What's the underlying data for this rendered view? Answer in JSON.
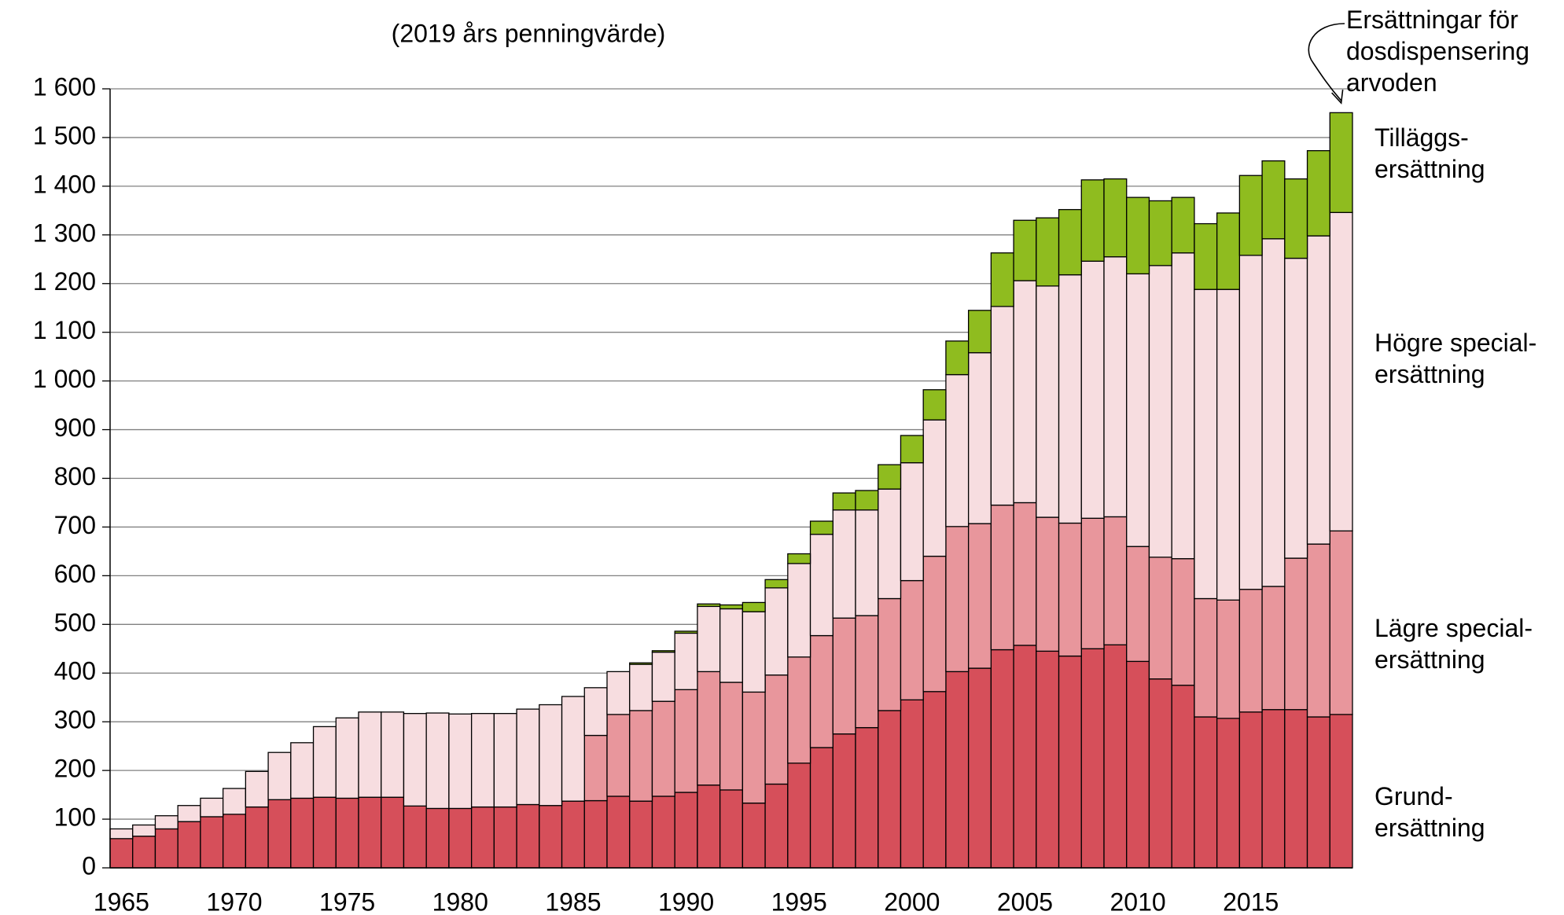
{
  "chart_data": {
    "type": "stacked_bar",
    "subtitle": "(2019 års penningvärde)",
    "annotation": "Ersättningar för\ndosdispensering\narvoden",
    "x": [
      1965,
      1966,
      1967,
      1968,
      1969,
      1970,
      1971,
      1972,
      1973,
      1974,
      1975,
      1976,
      1977,
      1978,
      1979,
      1980,
      1981,
      1982,
      1983,
      1984,
      1985,
      1986,
      1987,
      1988,
      1989,
      1990,
      1991,
      1992,
      1993,
      1994,
      1995,
      1996,
      1997,
      1998,
      1999,
      2000,
      2001,
      2002,
      2003,
      2004,
      2005,
      2006,
      2007,
      2008,
      2009,
      2010,
      2011,
      2012,
      2013,
      2014,
      2015,
      2016,
      2017,
      2018,
      2019
    ],
    "xlim": [
      1964.5,
      2019.5
    ],
    "xticks": [
      1965,
      1970,
      1975,
      1980,
      1985,
      1990,
      1995,
      2000,
      2005,
      2010,
      2015
    ],
    "ylim": [
      0,
      1600
    ],
    "yticks": [
      0,
      100,
      200,
      300,
      400,
      500,
      600,
      700,
      800,
      900,
      {
        "value": 1000,
        "label": "1 000"
      },
      {
        "value": 1100,
        "label": "1 100"
      },
      {
        "value": 1200,
        "label": "1 200"
      },
      {
        "value": 1300,
        "label": "1 300"
      },
      {
        "value": 1400,
        "label": "1 400"
      },
      {
        "value": 1500,
        "label": "1 500"
      },
      {
        "value": 1600,
        "label": "1 600"
      }
    ],
    "grid": true,
    "series": [
      {
        "name": "Grund-\nersättning",
        "color": "#d64f5a",
        "values": [
          60,
          65,
          80,
          95,
          105,
          110,
          125,
          140,
          143,
          145,
          143,
          145,
          145,
          127,
          122,
          122,
          125,
          125,
          130,
          128,
          137,
          138,
          147,
          137,
          147,
          155,
          170,
          160,
          133,
          172,
          215,
          247,
          275,
          288,
          323,
          345,
          362,
          403,
          410,
          448,
          457,
          445,
          435,
          450,
          458,
          424,
          388,
          375,
          310,
          307,
          320,
          325,
          325,
          310,
          315
        ]
      },
      {
        "name": "Lägre special-\nersättning",
        "color": "#e8969c",
        "values": [
          0,
          0,
          0,
          0,
          0,
          0,
          0,
          0,
          0,
          0,
          0,
          0,
          0,
          0,
          0,
          0,
          0,
          0,
          0,
          0,
          0,
          134,
          168,
          186,
          195,
          211,
          233,
          221,
          228,
          224,
          218,
          230,
          238,
          230,
          230,
          245,
          278,
          298,
          297,
          297,
          293,
          275,
          273,
          268,
          263,
          236,
          250,
          260,
          243,
          243,
          252,
          253,
          311,
          355,
          377
        ]
      },
      {
        "name": "Högre special-\nersättning",
        "color": "#f7dde0",
        "values": [
          20,
          23,
          27,
          33,
          38,
          53,
          73,
          97,
          114,
          145,
          165,
          175,
          175,
          190,
          196,
          194,
          192,
          192,
          196,
          207,
          215,
          98,
          88,
          95,
          101,
          116,
          134,
          151,
          165,
          179,
          192,
          208,
          222,
          217,
          225,
          242,
          280,
          312,
          351,
          408,
          456,
          475,
          510,
          528,
          534,
          560,
          599,
          628,
          635,
          638,
          686,
          714,
          616,
          633,
          654
        ]
      },
      {
        "name": "Tilläggs-\nersättning",
        "color": "#8fbc1f",
        "values": [
          0,
          0,
          0,
          0,
          0,
          0,
          0,
          0,
          0,
          0,
          0,
          0,
          0,
          0,
          0,
          0,
          0,
          0,
          0,
          0,
          0,
          0,
          0,
          3,
          3,
          4,
          5,
          8,
          19,
          17,
          20,
          27,
          35,
          40,
          50,
          56,
          62,
          69,
          87,
          110,
          124,
          140,
          134,
          167,
          160,
          157,
          133,
          114,
          135,
          157,
          164,
          160,
          163,
          175,
          205
        ]
      }
    ]
  }
}
